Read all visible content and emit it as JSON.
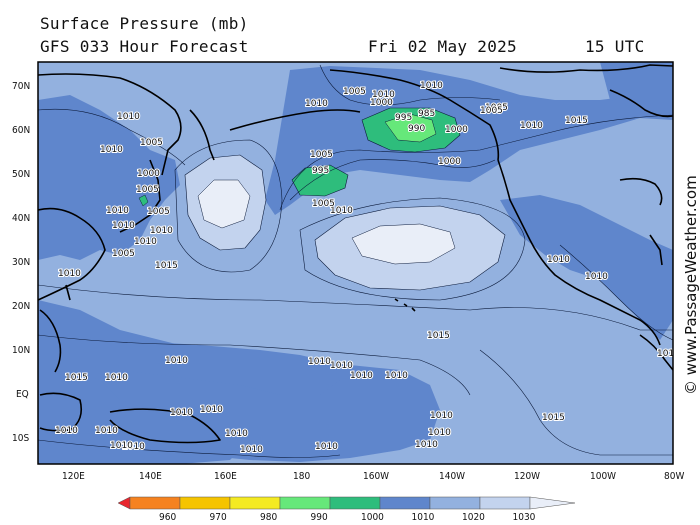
{
  "header": {
    "title": "Surface Pressure (mb)",
    "forecast": "GFS 033 Hour Forecast",
    "date": "Fri 02 May 2025",
    "time": "15 UTC"
  },
  "credit": "© www.PassageWeather.com",
  "axes": {
    "lat_labels": [
      "70N",
      "60N",
      "50N",
      "40N",
      "30N",
      "20N",
      "10N",
      "EQ",
      "10S"
    ],
    "lon_labels": [
      "120E",
      "140E",
      "160E",
      "180",
      "160W",
      "140W",
      "120W",
      "100W",
      "80W"
    ]
  },
  "legend": {
    "values": [
      "960",
      "970",
      "980",
      "990",
      "1000",
      "1010",
      "1020",
      "1030"
    ],
    "colors": [
      "#e8262e",
      "#f58220",
      "#f5c400",
      "#f4ea22",
      "#66e87a",
      "#2ebd7c",
      "#5f86cc",
      "#93b1df",
      "#c3d3ee",
      "#e9eef8"
    ]
  },
  "isobars": [
    {
      "v": "1010",
      "r": 1
    },
    {
      "v": "1005",
      "r": 1
    },
    {
      "v": "1010",
      "r": 1
    },
    {
      "v": "1000",
      "r": 1
    },
    {
      "v": "1010",
      "r": 1
    },
    {
      "v": "995",
      "r": 1
    },
    {
      "v": "990",
      "r": 1
    },
    {
      "v": "985",
      "r": 1
    },
    {
      "v": "1000",
      "r": 1
    },
    {
      "v": "1005",
      "r": 1
    },
    {
      "v": "1015",
      "r": 1
    },
    {
      "v": "1010",
      "r": 1
    },
    {
      "v": "1005",
      "r": 1
    },
    {
      "v": "1000",
      "r": 1
    },
    {
      "v": "995",
      "r": 1
    },
    {
      "v": "1005",
      "r": 1
    },
    {
      "v": "1010",
      "r": 1
    },
    {
      "v": "1005",
      "r": 1
    },
    {
      "v": "1015",
      "r": 1
    },
    {
      "v": "1010",
      "r": 1
    },
    {
      "v": "1000",
      "r": 1
    },
    {
      "v": "1005",
      "r": 1
    },
    {
      "v": "1010",
      "r": 1
    },
    {
      "v": "1005",
      "r": 1
    },
    {
      "v": "1010",
      "r": 1
    },
    {
      "v": "1015",
      "r": 1
    },
    {
      "v": "1010",
      "r": 1
    },
    {
      "v": "1010",
      "r": 1
    },
    {
      "v": "1005",
      "r": 1
    },
    {
      "v": "1010",
      "r": 1
    },
    {
      "v": "1005",
      "r": 1
    },
    {
      "v": "1010",
      "r": 1
    },
    {
      "v": "1010",
      "r": 1
    },
    {
      "v": "1010",
      "r": 1
    },
    {
      "v": "1010",
      "r": 1
    },
    {
      "v": "1010",
      "r": 1
    },
    {
      "v": "1010",
      "r": 1
    },
    {
      "v": "1015",
      "r": 1
    },
    {
      "v": "1010",
      "r": 1
    },
    {
      "v": "1010",
      "r": 1
    },
    {
      "v": "1010",
      "r": 1
    },
    {
      "v": "1010",
      "r": 1
    },
    {
      "v": "1010",
      "r": 1
    },
    {
      "v": "1010",
      "r": 1
    },
    {
      "v": "1010",
      "r": 1
    },
    {
      "v": "1010",
      "r": 1
    },
    {
      "v": "1010",
      "r": 1
    },
    {
      "v": "1010",
      "r": 1
    },
    {
      "v": "1010",
      "r": 1
    },
    {
      "v": "1010",
      "r": 1
    },
    {
      "v": "1010",
      "r": 1
    },
    {
      "v": "1015",
      "r": 1
    },
    {
      "v": "1015",
      "r": 1
    },
    {
      "v": "1010",
      "r": 1
    },
    {
      "v": "1010",
      "r": 1
    }
  ]
}
